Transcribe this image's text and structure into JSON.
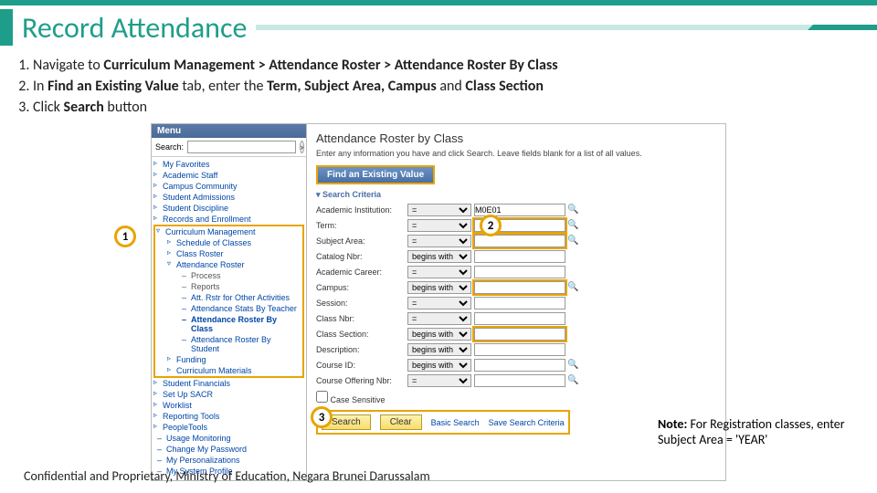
{
  "colors": {
    "accent": "#1e9e8a",
    "highlight": "#e8a400",
    "link": "#0046a6"
  },
  "slide": {
    "title": "Record Attendance",
    "footer": "Confidential and Proprietary, Ministry of Education, Negara Brunei Darussalam"
  },
  "steps": [
    {
      "pre": "Navigate to ",
      "bold": "Curriculum Management > Attendance Roster > Attendance Roster By Class",
      "post": ""
    },
    {
      "pre": "In ",
      "bold": "Find an Existing Value",
      "mid": " tab, enter the ",
      "bold2": "Term, Subject Area, Campus",
      "mid2": " and ",
      "bold3": "Class Section",
      "post": ""
    },
    {
      "pre": "Click ",
      "bold": "Search",
      "post": " button"
    }
  ],
  "callouts": {
    "c1": "1",
    "c2": "2",
    "c3": "3"
  },
  "menu": {
    "header": "Menu",
    "search_label": "Search:",
    "items_top": [
      "My Favorites",
      "Academic Staff",
      "Campus Community",
      "Student Admissions",
      "Student Discipline",
      "Records and Enrollment"
    ],
    "curriculum": "Curriculum Management",
    "sub_cur": [
      "Schedule of Classes",
      "Class Roster"
    ],
    "att_roster": "Attendance Roster",
    "att_children": [
      {
        "t": "Process",
        "link": false
      },
      {
        "t": "Reports",
        "link": false
      },
      {
        "t": "Att. Rstr for Other Activities",
        "link": true
      },
      {
        "t": "Attendance Stats By Teacher",
        "link": true
      },
      {
        "t": "Attendance Roster By Class",
        "link": true,
        "bold": true
      },
      {
        "t": "Attendance Roster By Student",
        "link": true
      }
    ],
    "after_cur": [
      "Funding",
      "Curriculum Materials"
    ],
    "items_bottom": [
      "Student Financials",
      "Set Up SACR",
      "Worklist",
      "Reporting Tools",
      "PeopleTools"
    ],
    "bottom_links": [
      "Usage Monitoring",
      "Change My Password",
      "My Personalizations",
      "My System Profile"
    ]
  },
  "page": {
    "title": "Attendance Roster by Class",
    "sub": "Enter any information you have and click Search. Leave fields blank for a list of all values.",
    "tab": "Find an Existing Value",
    "criteria": "Search Criteria",
    "fields": [
      {
        "label": "Academic Institution:",
        "op": "=",
        "val": "M0E01",
        "hl": false,
        "mag": true
      },
      {
        "label": "Term:",
        "op": "=",
        "val": "",
        "hl": true,
        "mag": true
      },
      {
        "label": "Subject Area:",
        "op": "=",
        "val": "",
        "hl": true,
        "mag": true
      },
      {
        "label": "Catalog Nbr:",
        "op": "begins with",
        "val": "",
        "hl": false,
        "mag": false
      },
      {
        "label": "Academic Career:",
        "op": "=",
        "val": "",
        "hl": false,
        "mag": false
      },
      {
        "label": "Campus:",
        "op": "begins with",
        "val": "",
        "hl": true,
        "mag": true
      },
      {
        "label": "Session:",
        "op": "=",
        "val": "",
        "hl": false,
        "mag": false
      },
      {
        "label": "Class Nbr:",
        "op": "=",
        "val": "",
        "hl": false,
        "mag": false
      },
      {
        "label": "Class Section:",
        "op": "begins with",
        "val": "",
        "hl": true,
        "mag": false
      },
      {
        "label": "Description:",
        "op": "begins with",
        "val": "",
        "hl": false,
        "mag": false
      },
      {
        "label": "Course ID:",
        "op": "begins with",
        "val": "",
        "hl": false,
        "mag": true
      },
      {
        "label": "Course Offering Nbr:",
        "op": "=",
        "val": "",
        "hl": false,
        "mag": true
      }
    ],
    "case_sensitive": "Case Sensitive",
    "search": "Search",
    "clear": "Clear",
    "basic": "Basic Search",
    "save": "Save Search Criteria"
  },
  "note": {
    "pre": "Note: ",
    "text": "For Registration classes, enter Subject Area = 'YEAR'"
  }
}
